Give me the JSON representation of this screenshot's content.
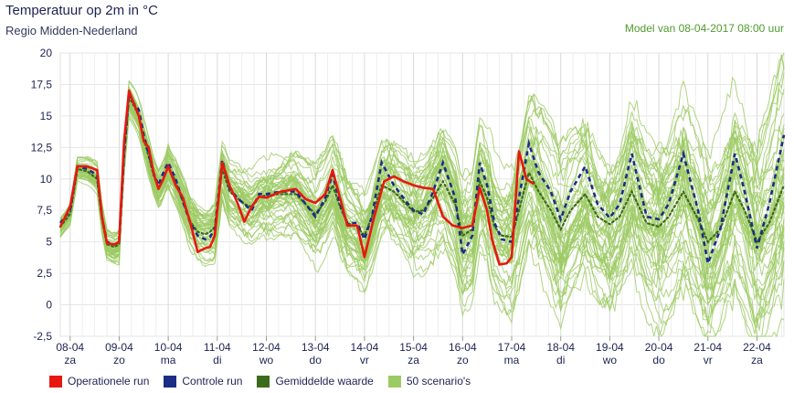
{
  "header": {
    "title": "Temperatuur op 2m in °C",
    "subtitle": "Regio Midden-Nederland",
    "model": "Model van 08-04-2017 08:00 uur"
  },
  "legend": [
    {
      "label": "Operationele run",
      "color": "#e8180f"
    },
    {
      "label": "Controle run",
      "color": "#1c2d86"
    },
    {
      "label": "Gemiddelde waarde",
      "color": "#3d6b1c"
    },
    {
      "label": "50 scenario's",
      "color": "#9ccb63"
    }
  ],
  "chart_data": {
    "type": "line",
    "ylim": [
      -2.5,
      20
    ],
    "yticks": [
      "-2,5",
      "0",
      "2,5",
      "5",
      "7,5",
      "10",
      "12,5",
      "15",
      "17,5",
      "20"
    ],
    "yticks_values": [
      -2.5,
      0,
      2.5,
      5,
      7.5,
      10,
      12.5,
      15,
      17.5,
      20
    ],
    "xlim": [
      -0.2,
      14.55
    ],
    "day_labels": [
      {
        "date": "08-04",
        "day": "za"
      },
      {
        "date": "09-04",
        "day": "zo"
      },
      {
        "date": "10-04",
        "day": "ma"
      },
      {
        "date": "11-04",
        "day": "di"
      },
      {
        "date": "12-04",
        "day": "wo"
      },
      {
        "date": "13-04",
        "day": "do"
      },
      {
        "date": "14-04",
        "day": "vr"
      },
      {
        "date": "15-04",
        "day": "za"
      },
      {
        "date": "16-04",
        "day": "zo"
      },
      {
        "date": "17-04",
        "day": "ma"
      },
      {
        "date": "18-04",
        "day": "di"
      },
      {
        "date": "19-04",
        "day": "wo"
      },
      {
        "date": "20-04",
        "day": "do"
      },
      {
        "date": "21-04",
        "day": "vr"
      },
      {
        "date": "22-04",
        "day": "za"
      }
    ],
    "series": [
      {
        "name": "Operationele run",
        "color": "#e8180f",
        "x": [
          -0.2,
          0.0,
          0.15,
          0.35,
          0.55,
          0.65,
          0.75,
          0.9,
          1.0,
          1.1,
          1.2,
          1.3,
          1.4,
          1.5,
          1.6,
          1.7,
          1.8,
          1.9,
          2.0,
          2.15,
          2.3,
          2.45,
          2.6,
          2.75,
          2.85,
          2.95,
          3.1,
          3.25,
          3.4,
          3.55,
          3.7,
          3.85,
          4.0,
          4.3,
          4.6,
          4.8,
          5.0,
          5.2,
          5.35,
          5.5,
          5.65,
          5.85,
          6.0,
          6.2,
          6.4,
          6.6,
          6.8,
          7.0,
          7.2,
          7.4,
          7.6,
          7.8,
          8.0,
          8.2,
          8.35,
          8.5,
          8.6,
          8.75,
          8.9,
          9.0,
          9.15,
          9.3,
          9.45
        ],
        "y": [
          6.2,
          7.8,
          11.0,
          11.0,
          10.7,
          7.0,
          4.9,
          4.8,
          5.0,
          13.0,
          17.0,
          16.0,
          15.0,
          13.0,
          12.5,
          10.5,
          9.2,
          10.0,
          11.0,
          9.5,
          8.5,
          6.5,
          4.2,
          4.5,
          4.6,
          5.5,
          11.3,
          9.5,
          8.2,
          6.6,
          7.8,
          8.6,
          8.5,
          9.0,
          9.2,
          8.4,
          8.1,
          8.8,
          10.7,
          8.5,
          6.3,
          6.3,
          3.8,
          7.0,
          9.8,
          10.2,
          9.8,
          9.5,
          9.3,
          9.2,
          7.0,
          6.3,
          6.1,
          6.3,
          9.3,
          7.5,
          5.2,
          3.2,
          3.3,
          3.8,
          12.2,
          10.0,
          9.6
        ]
      },
      {
        "name": "Controle run",
        "color": "#1c2d86",
        "x": [
          -0.2,
          0.0,
          0.15,
          0.35,
          0.55,
          0.65,
          0.75,
          0.9,
          1.0,
          1.1,
          1.2,
          1.3,
          1.4,
          1.5,
          1.6,
          1.7,
          1.8,
          1.9,
          2.0,
          2.15,
          2.3,
          2.45,
          2.6,
          2.75,
          2.85,
          2.95,
          3.1,
          3.25,
          3.4,
          3.55,
          3.7,
          3.85,
          4.0,
          4.3,
          4.6,
          4.8,
          5.0,
          5.2,
          5.35,
          5.5,
          5.65,
          5.85,
          6.0,
          6.15,
          6.35,
          6.6,
          6.85,
          7.0,
          7.2,
          7.4,
          7.6,
          7.85,
          8.0,
          8.2,
          8.35,
          8.5,
          8.65,
          8.8,
          9.0,
          9.15,
          9.35,
          9.55,
          9.8,
          10.0,
          10.2,
          10.5,
          10.75,
          11.0,
          11.2,
          11.45,
          11.75,
          12.0,
          12.2,
          12.5,
          12.8,
          13.0,
          13.25,
          13.55,
          13.75,
          14.0,
          14.25,
          14.55
        ],
        "y": [
          6.5,
          7.5,
          11.0,
          10.8,
          10.3,
          7.0,
          5.0,
          4.8,
          5.0,
          12.0,
          16.8,
          16.0,
          15.5,
          13.5,
          12.0,
          10.5,
          9.5,
          10.5,
          11.3,
          10.0,
          8.2,
          6.5,
          5.5,
          5.2,
          5.4,
          6.0,
          11.5,
          9.3,
          8.5,
          8.0,
          7.5,
          8.8,
          8.8,
          9.0,
          9.0,
          8.0,
          7.0,
          8.5,
          10.4,
          8.0,
          6.5,
          6.5,
          5.2,
          7.0,
          11.3,
          9.5,
          8.2,
          7.5,
          7.2,
          9.0,
          11.3,
          8.5,
          4.0,
          5.5,
          11.3,
          9.5,
          6.5,
          5.2,
          5.0,
          8.5,
          12.8,
          10.5,
          9.0,
          6.8,
          9.0,
          11.0,
          8.0,
          6.9,
          8.0,
          12.0,
          7.0,
          6.8,
          8.0,
          12.0,
          7.5,
          3.3,
          6.0,
          12.0,
          9.0,
          4.5,
          8.0,
          13.5
        ]
      },
      {
        "name": "Gemiddelde waarde",
        "color": "#3d6b1c",
        "x": [
          -0.2,
          0.0,
          0.15,
          0.35,
          0.55,
          0.65,
          0.75,
          0.9,
          1.0,
          1.1,
          1.2,
          1.3,
          1.4,
          1.5,
          1.6,
          1.7,
          1.8,
          1.9,
          2.0,
          2.15,
          2.3,
          2.45,
          2.6,
          2.75,
          2.85,
          2.95,
          3.1,
          3.25,
          3.4,
          3.55,
          3.7,
          3.85,
          4.0,
          4.3,
          4.6,
          4.8,
          5.0,
          5.2,
          5.35,
          5.5,
          5.65,
          5.85,
          6.0,
          6.15,
          6.35,
          6.6,
          6.85,
          7.0,
          7.2,
          7.4,
          7.6,
          7.85,
          8.0,
          8.2,
          8.35,
          8.5,
          8.65,
          8.8,
          9.0,
          9.15,
          9.35,
          9.55,
          9.8,
          10.0,
          10.2,
          10.5,
          10.75,
          11.0,
          11.2,
          11.45,
          11.75,
          12.0,
          12.2,
          12.5,
          12.8,
          13.0,
          13.25,
          13.55,
          13.75,
          14.0,
          14.25,
          14.55
        ],
        "y": [
          6.2,
          7.2,
          10.8,
          10.6,
          10.0,
          6.8,
          4.8,
          4.6,
          4.8,
          11.8,
          16.5,
          15.8,
          15.0,
          13.2,
          11.8,
          10.3,
          9.3,
          10.0,
          11.0,
          9.8,
          8.2,
          6.6,
          5.8,
          5.6,
          5.8,
          6.2,
          10.8,
          9.0,
          8.5,
          8.0,
          7.8,
          8.6,
          8.7,
          8.8,
          8.8,
          8.0,
          7.2,
          8.2,
          9.5,
          7.8,
          6.5,
          6.2,
          5.5,
          7.0,
          9.5,
          9.0,
          8.0,
          7.4,
          7.5,
          8.5,
          9.8,
          8.0,
          5.5,
          6.0,
          9.8,
          8.5,
          6.2,
          5.5,
          5.4,
          7.5,
          10.5,
          9.0,
          7.5,
          6.0,
          7.5,
          8.8,
          7.0,
          6.4,
          7.0,
          9.0,
          6.5,
          6.2,
          7.0,
          9.0,
          6.8,
          5.0,
          6.0,
          9.0,
          7.5,
          5.0,
          6.5,
          9.5
        ]
      }
    ]
  }
}
